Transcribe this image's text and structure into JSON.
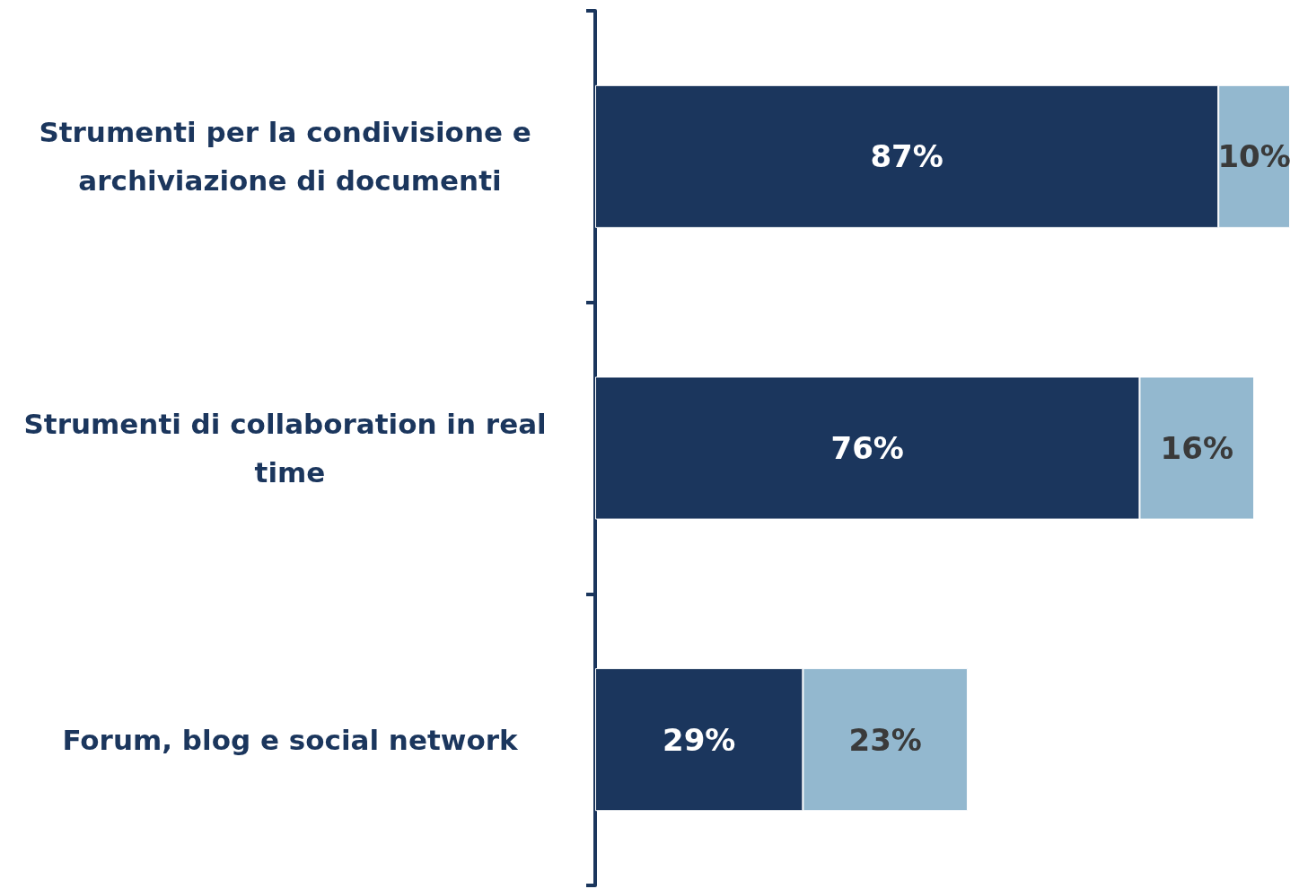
{
  "chart_data": {
    "type": "bar",
    "orientation": "horizontal",
    "stacked": true,
    "tick_labels": "y",
    "grid": false,
    "categories": [
      "Strumenti per la condivisione e archiviazione di documenti",
      "Strumenti di collaboration in real time",
      "Forum, blog e social network"
    ],
    "series": [
      {
        "color": "#1b365d",
        "values": [
          87,
          76,
          29
        ],
        "value_labels": [
          "87%",
          "76%",
          "29%"
        ]
      },
      {
        "color": "#93b8cf",
        "values": [
          10,
          16,
          23
        ],
        "value_labels": [
          "10%",
          "16%",
          "23%"
        ]
      }
    ]
  }
}
